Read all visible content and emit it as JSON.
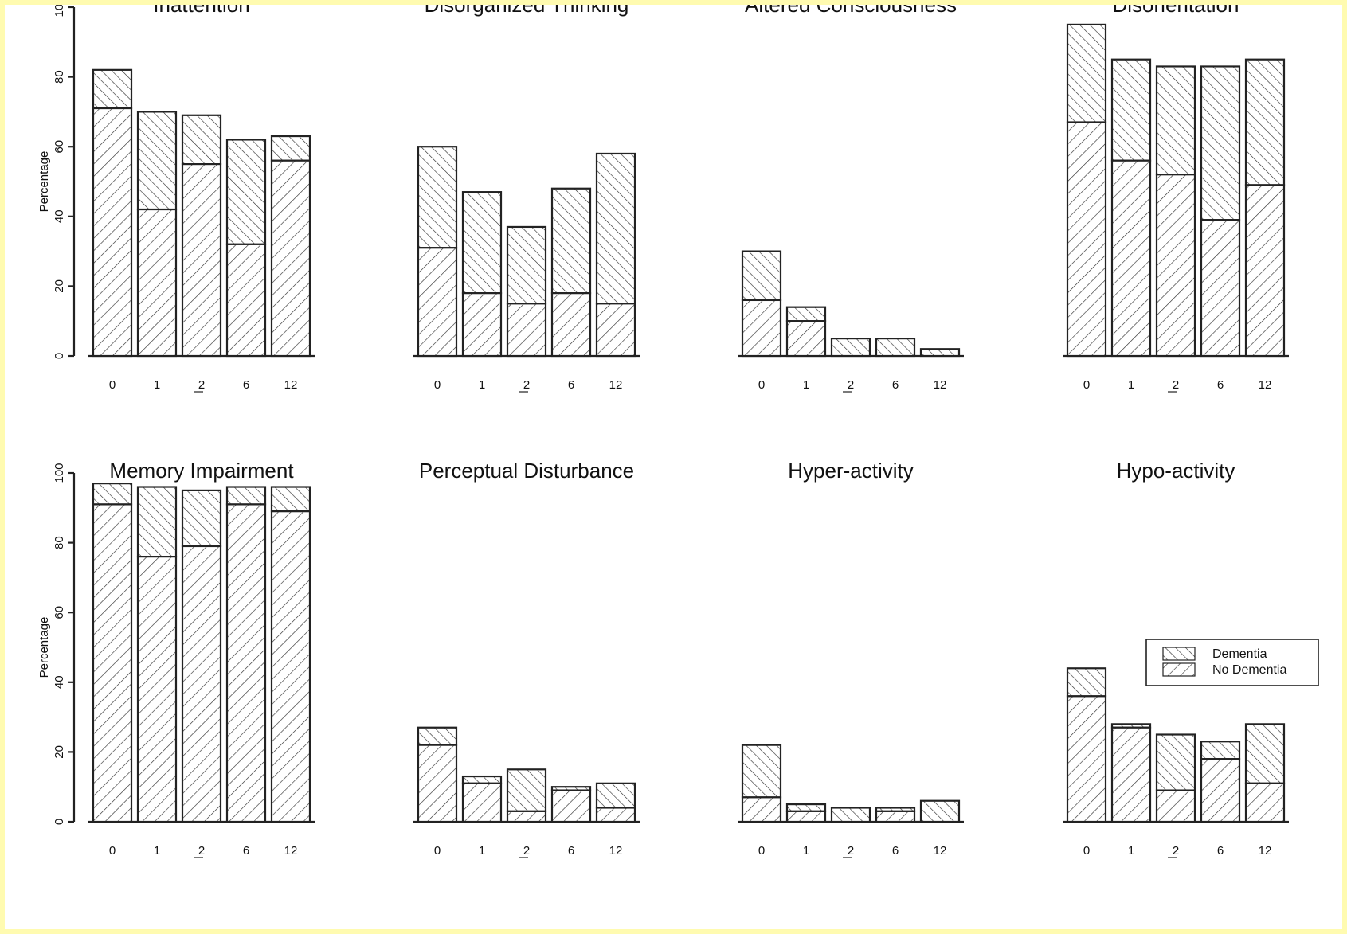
{
  "chart_data": {
    "type": "bar",
    "stacked": true,
    "ylabel": "Percentage",
    "ylim": [
      0,
      100
    ],
    "yticks": [
      0,
      20,
      40,
      60,
      80,
      100
    ],
    "categories": [
      "0",
      "1",
      "2",
      "6",
      "12"
    ],
    "legend": {
      "placement": "right, lower row",
      "entries": [
        {
          "name": "Dementia",
          "pattern": "hatch-backslash"
        },
        {
          "name": "No Dementia",
          "pattern": "hatch-slash"
        }
      ]
    },
    "panels": [
      {
        "title": "Inattention",
        "no_dementia": [
          71,
          42,
          55,
          32,
          56
        ],
        "total": [
          82,
          70,
          69,
          62,
          63
        ]
      },
      {
        "title": "Disorganized Thinking",
        "no_dementia": [
          31,
          18,
          15,
          18,
          15
        ],
        "total": [
          60,
          47,
          37,
          48,
          58
        ]
      },
      {
        "title": "Altered Consciousness",
        "no_dementia": [
          16,
          10,
          0,
          0,
          0
        ],
        "total": [
          30,
          14,
          5,
          5,
          2
        ]
      },
      {
        "title": "Disorientation",
        "no_dementia": [
          67,
          56,
          52,
          39,
          49
        ],
        "total": [
          95,
          85,
          83,
          83,
          85
        ]
      },
      {
        "title": "Memory Impairment",
        "no_dementia": [
          91,
          76,
          79,
          91,
          89
        ],
        "total": [
          97,
          96,
          95,
          96,
          96
        ]
      },
      {
        "title": "Perceptual Disturbance",
        "no_dementia": [
          22,
          11,
          3,
          9,
          4
        ],
        "total": [
          27,
          13,
          15,
          10,
          11
        ]
      },
      {
        "title": "Hyper-activity",
        "no_dementia": [
          7,
          3,
          0,
          3,
          0
        ],
        "total": [
          22,
          5,
          4,
          4,
          6
        ]
      },
      {
        "title": "Hypo-activity",
        "no_dementia": [
          36,
          27,
          9,
          18,
          11
        ],
        "total": [
          44,
          28,
          25,
          23,
          28
        ]
      }
    ]
  }
}
